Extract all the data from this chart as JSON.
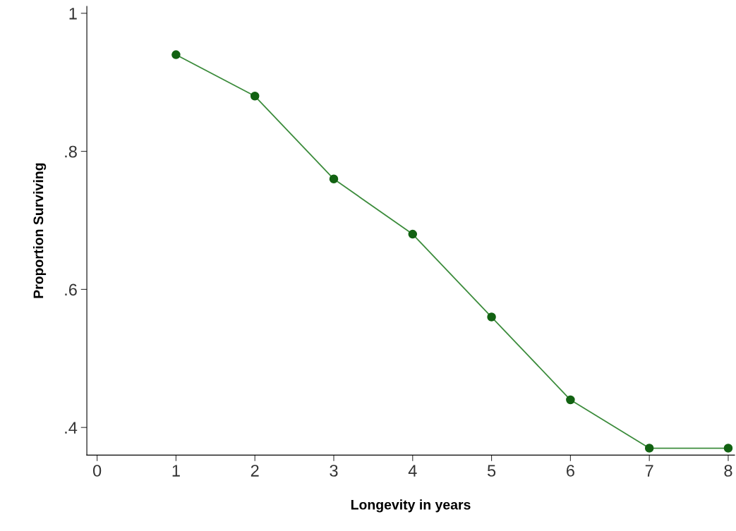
{
  "chart_data": {
    "type": "line",
    "xlabel": "Longevity in years",
    "ylabel": "Proportion Surviving",
    "x": [
      1,
      2,
      3,
      4,
      5,
      6,
      7,
      8
    ],
    "series": [
      {
        "color": "#3c8c3c",
        "values": [
          0.94,
          0.88,
          0.76,
          0.68,
          0.56,
          0.44,
          0.37,
          0.37
        ]
      }
    ],
    "marker": "circle",
    "line_style": "solid",
    "xlim": [
      -0.13,
      8.08
    ],
    "xticks": [
      0,
      1,
      2,
      3,
      4,
      5,
      6,
      7,
      8
    ],
    "ylim": [
      0.36,
      1.01
    ],
    "yticks": [
      {
        "value": 0.4,
        "label": ".4"
      },
      {
        "value": 0.6,
        "label": ".6"
      },
      {
        "value": 0.8,
        "label": ".8"
      },
      {
        "value": 1,
        "label": "1"
      }
    ],
    "grid": false
  }
}
